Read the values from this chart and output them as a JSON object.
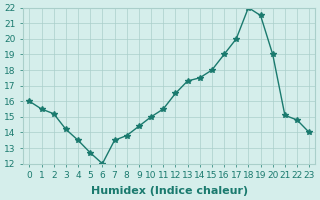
{
  "x": [
    0,
    1,
    2,
    3,
    4,
    5,
    6,
    7,
    8,
    9,
    10,
    11,
    12,
    13,
    14,
    15,
    16,
    17,
    18,
    19,
    20,
    21,
    22,
    23
  ],
  "y": [
    16,
    15.5,
    15.2,
    14.2,
    13.5,
    12.7,
    12.0,
    13.5,
    13.8,
    14.4,
    15.0,
    15.5,
    16.5,
    17.3,
    17.5,
    18.0,
    19.0,
    20.0,
    22.0,
    21.5,
    19.0,
    15.1,
    14.8,
    14.0
  ],
  "xlabel": "Humidex (Indice chaleur)",
  "ylabel": "",
  "xlim": [
    -0.5,
    23.5
  ],
  "ylim": [
    12,
    22
  ],
  "yticks": [
    12,
    13,
    14,
    15,
    16,
    17,
    18,
    19,
    20,
    21,
    22
  ],
  "xticks": [
    0,
    1,
    2,
    3,
    4,
    5,
    6,
    7,
    8,
    9,
    10,
    11,
    12,
    13,
    14,
    15,
    16,
    17,
    18,
    19,
    20,
    21,
    22,
    23
  ],
  "line_color": "#1a7a6e",
  "marker": "*",
  "bg_color": "#d5eeeb",
  "grid_color": "#aacfca",
  "axes_bg": "#d5eeeb",
  "tick_label_fontsize": 6.5,
  "xlabel_fontsize": 8
}
